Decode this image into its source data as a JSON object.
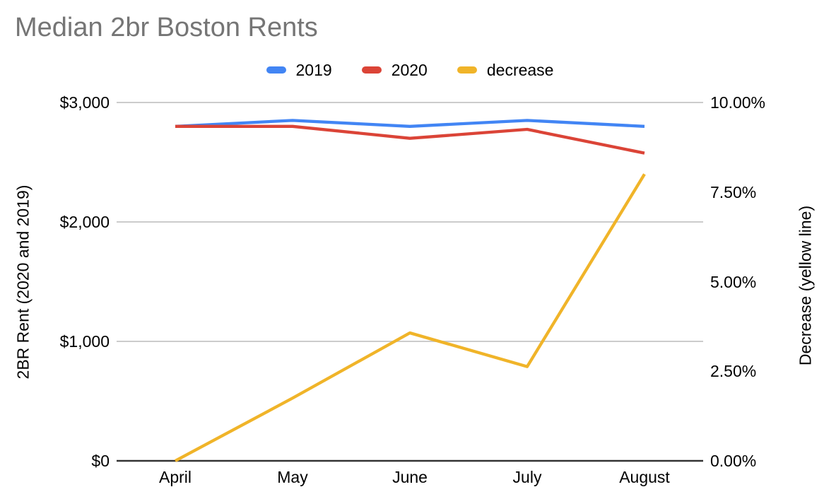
{
  "chart_data": {
    "type": "line",
    "title": "Median 2br Boston Rents",
    "legend_position": "top",
    "grid": true,
    "categories": [
      "April",
      "May",
      "June",
      "July",
      "August"
    ],
    "series": [
      {
        "name": "2019",
        "axis": "left",
        "color": "#4285F4",
        "values": [
          2800,
          2850,
          2800,
          2850,
          2800
        ]
      },
      {
        "name": "2020",
        "axis": "left",
        "color": "#DB4437",
        "values": [
          2800,
          2800,
          2700,
          2775,
          2576
        ]
      },
      {
        "name": "decrease",
        "axis": "right",
        "color": "#F0B429",
        "unit": "%",
        "values": [
          0,
          1.75,
          3.57,
          2.63,
          8.0
        ]
      }
    ],
    "left_axis": {
      "label": "2BR Rent (2020 and 2019)",
      "range": [
        0,
        3000
      ],
      "ticks": [
        0,
        1000,
        2000,
        3000
      ],
      "tick_labels": [
        "$0",
        "$1,000",
        "$2,000",
        "$3,000"
      ]
    },
    "right_axis": {
      "label": "Decrease (yellow line)",
      "range": [
        0,
        10
      ],
      "ticks": [
        0,
        2.5,
        5,
        7.5,
        10
      ],
      "tick_labels": [
        "0.00%",
        "2.50%",
        "5.00%",
        "7.50%",
        "10.00%"
      ]
    },
    "colors": {
      "title_text": "#757575",
      "tick_text": "#000000",
      "gridline": "#CCCCCC",
      "baseline": "#333333",
      "background": "#FFFFFF"
    }
  }
}
